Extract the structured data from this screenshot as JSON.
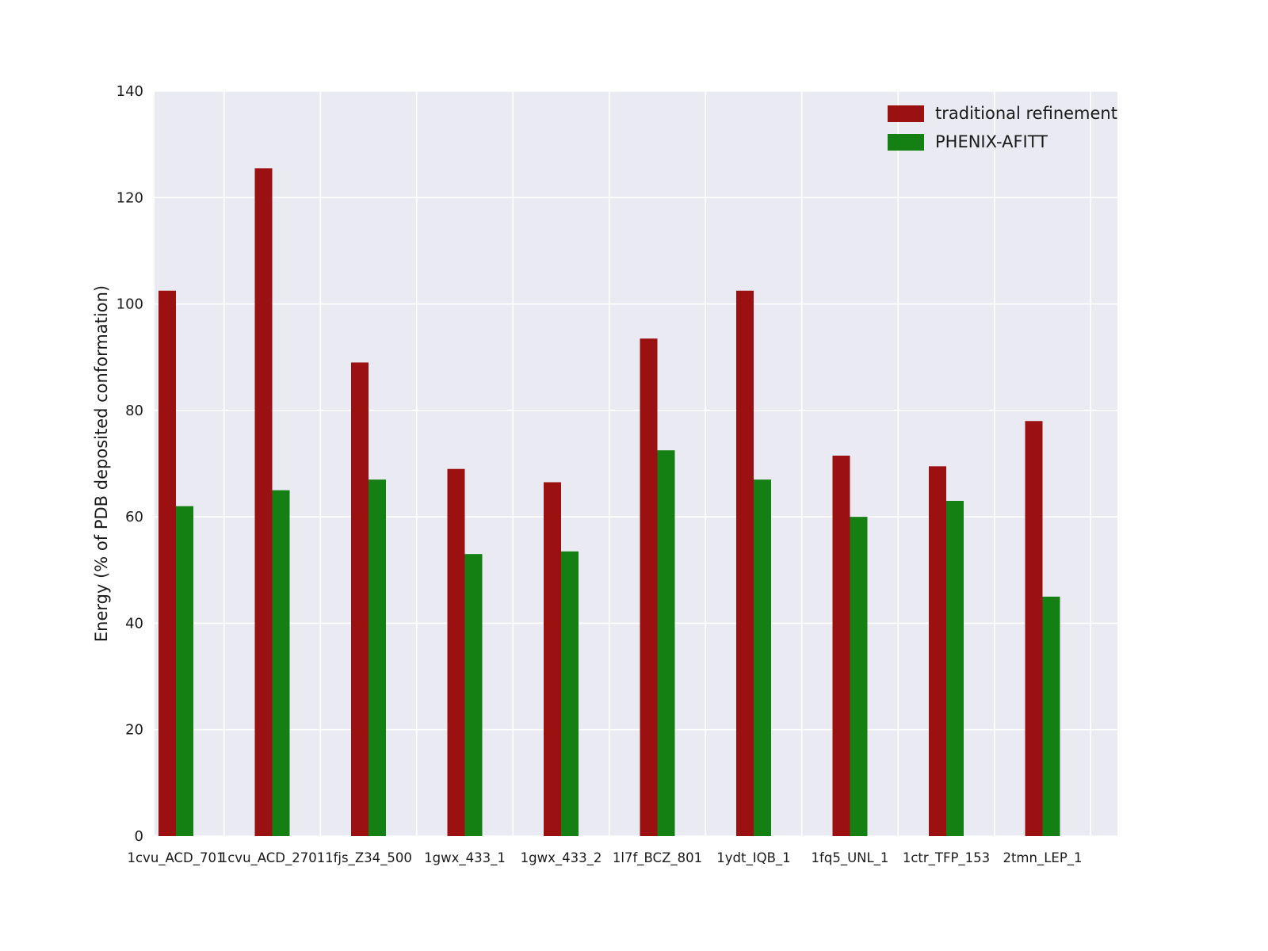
{
  "chart_data": {
    "type": "bar",
    "title": "",
    "xlabel": "",
    "ylabel": "Energy (% of PDB deposited conformation)",
    "ylim": [
      0,
      140
    ],
    "yticks": [
      0,
      20,
      40,
      60,
      80,
      100,
      120,
      140
    ],
    "grid": true,
    "plot_background": "#eaeaf2",
    "gridline_color": "#ffffff",
    "legend_position": "upper right",
    "categories": [
      "1cvu_ACD_701",
      "1cvu_ACD_2701",
      "1fjs_Z34_500",
      "1gwx_433_1",
      "1gwx_433_2",
      "1l7f_BCZ_801",
      "1ydt_IQB_1",
      "1fq5_UNL_1",
      "1ctr_TFP_153",
      "2tmn_LEP_1"
    ],
    "series": [
      {
        "name": "traditional refinement",
        "color": "#9b1010",
        "values": [
          102.5,
          125.5,
          89,
          69,
          66.5,
          93.5,
          102.5,
          71.5,
          69.5,
          78
        ]
      },
      {
        "name": "PHENIX-AFITT",
        "color": "#148014",
        "values": [
          62,
          65,
          67,
          53,
          53.5,
          72.5,
          67,
          60,
          63,
          45
        ]
      }
    ]
  }
}
